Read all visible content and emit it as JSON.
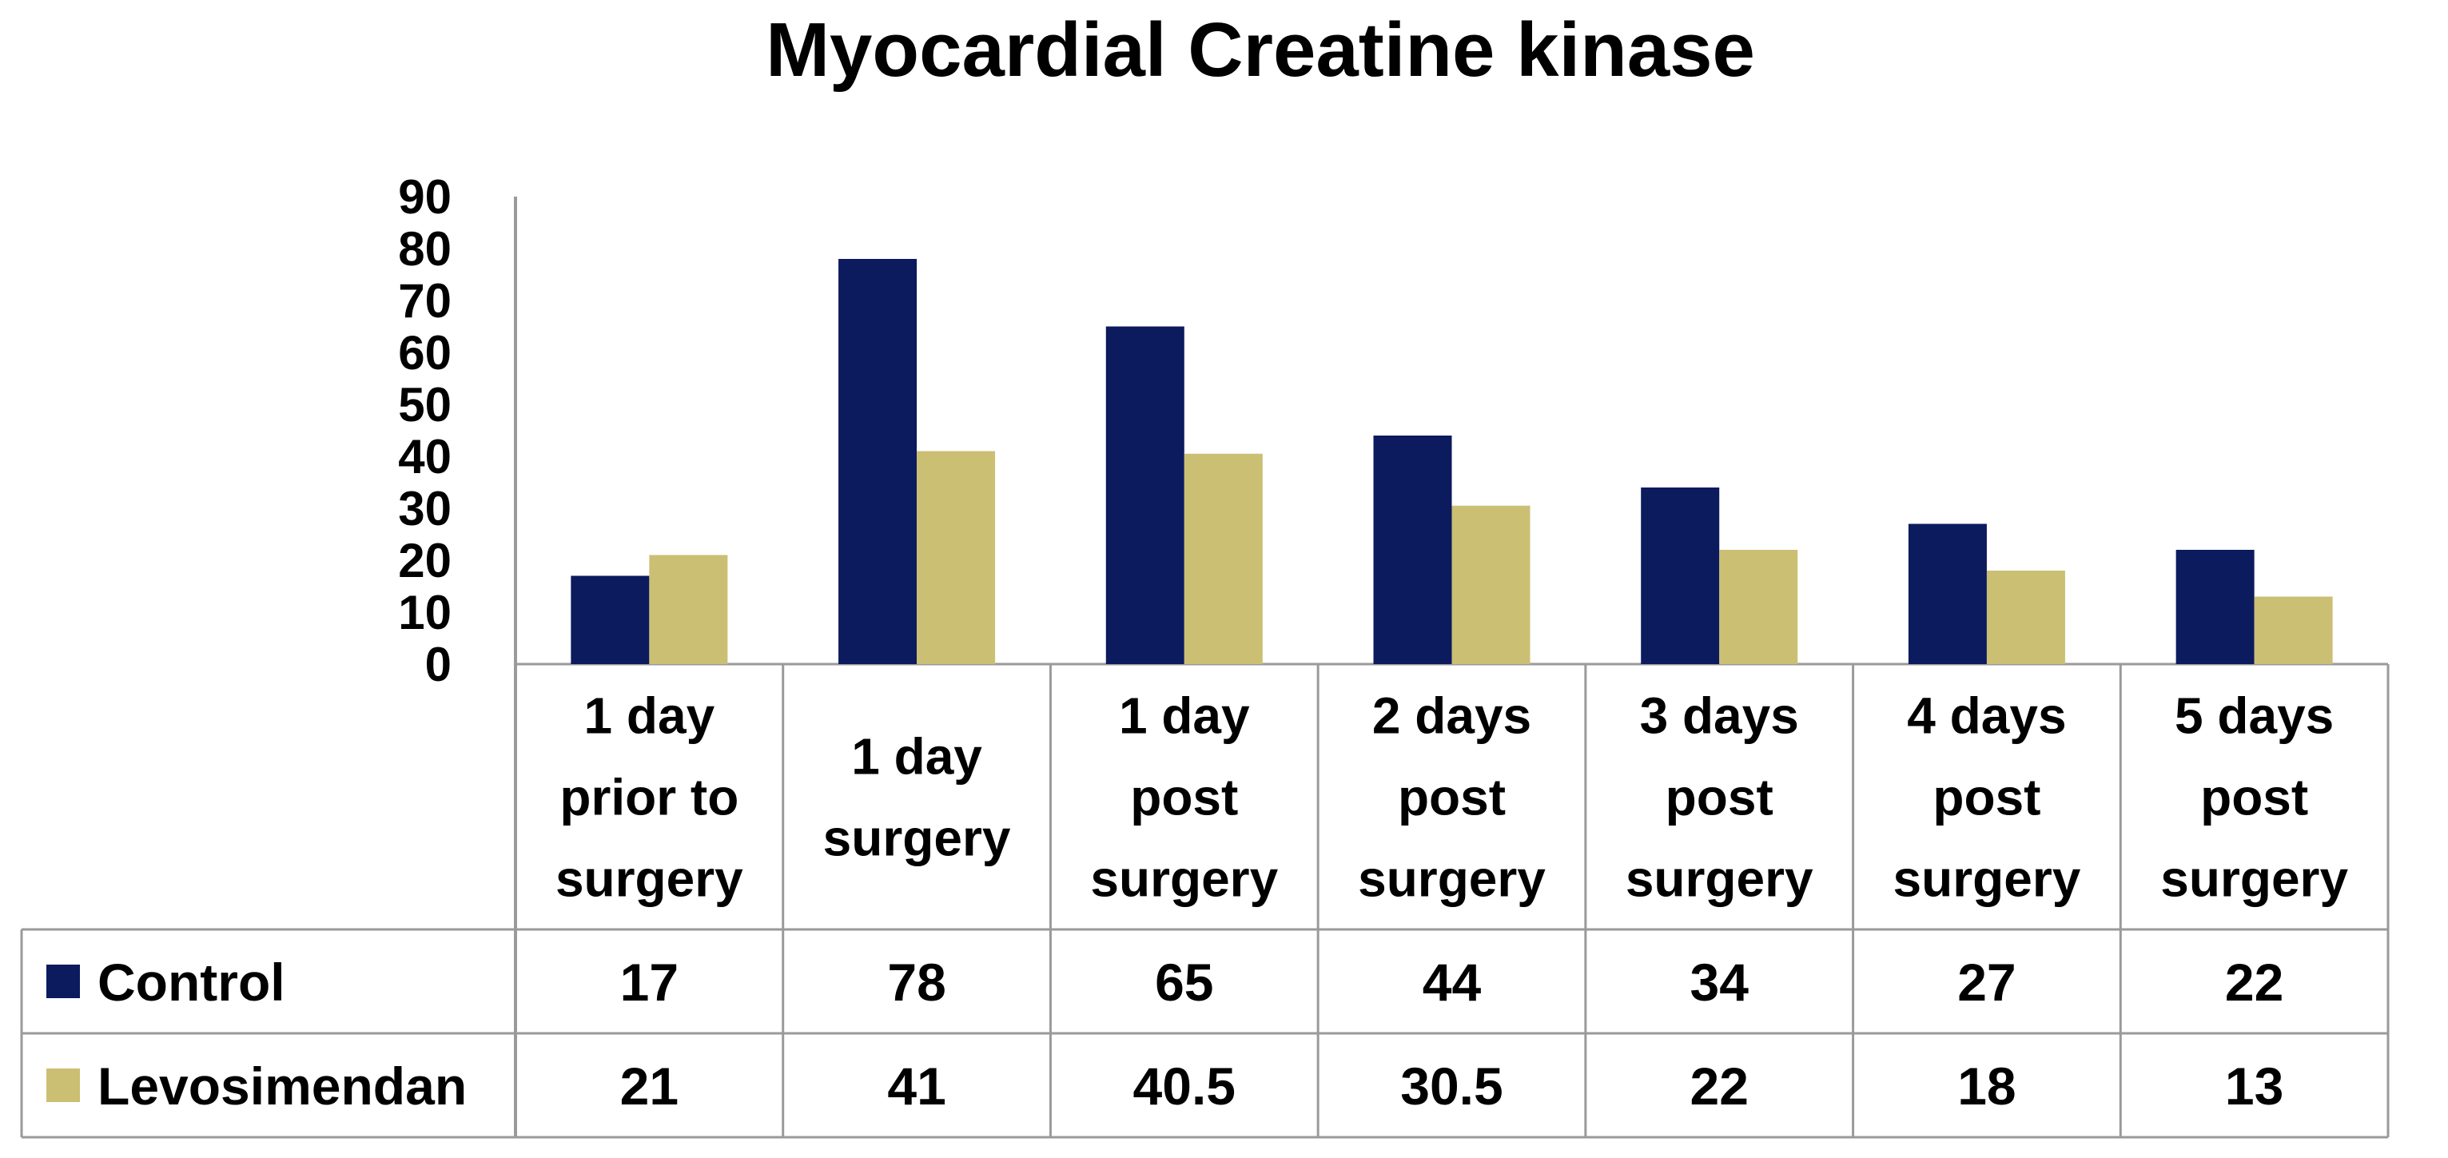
{
  "chart_data": {
    "type": "bar",
    "title": "Myocardial Creatine kinase",
    "xlabel": "",
    "ylabel": "",
    "ylim": [
      0,
      90
    ],
    "yticks": [
      0,
      10,
      20,
      30,
      40,
      50,
      60,
      70,
      80,
      90
    ],
    "grid": false,
    "legend_position": "data-table-left",
    "categories": [
      [
        "1 day",
        "prior to",
        "surgery"
      ],
      [
        "1 day",
        "surgery"
      ],
      [
        "1 day",
        "post",
        "surgery"
      ],
      [
        "2 days",
        "post",
        "surgery"
      ],
      [
        "3 days",
        "post",
        "surgery"
      ],
      [
        "4 days",
        "post",
        "surgery"
      ],
      [
        "5 days",
        "post",
        "surgery"
      ]
    ],
    "series": [
      {
        "name": "Control",
        "color": "#0c1a5e",
        "values": [
          17,
          78,
          65,
          44,
          34,
          27,
          22
        ],
        "labels": [
          "17",
          "78",
          "65",
          "44",
          "34",
          "27",
          "22"
        ]
      },
      {
        "name": "Levosimendan",
        "color": "#cbbf73",
        "values": [
          21,
          41,
          40.5,
          30.5,
          22,
          18,
          13
        ],
        "labels": [
          "21",
          "41",
          "40.5",
          "30.5",
          "22",
          "18",
          "13"
        ]
      }
    ]
  }
}
